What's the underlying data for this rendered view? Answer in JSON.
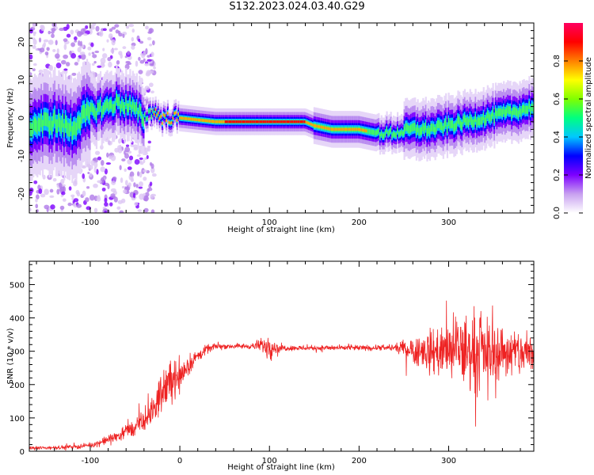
{
  "title": "S132.2023.024.03.40.G29",
  "chart_data": [
    {
      "type": "heatmap",
      "xlabel": "Height of straight line (km)",
      "ylabel": "Frequency (Hz)",
      "xlim": [
        -168,
        395
      ],
      "ylim": [
        -25,
        25
      ],
      "xticks": [
        -100,
        0,
        100,
        200,
        300
      ],
      "yticks": [
        -20,
        -10,
        0,
        10,
        20
      ],
      "grid": false,
      "colorbar": {
        "label": "Normalized spectral amplitude",
        "range": [
          0,
          1
        ],
        "ticks": [
          "0.0",
          "0.2",
          "0.4",
          "0.6",
          "0.8"
        ],
        "colors": [
          "#ffffff",
          "#c8a0f0",
          "#7d00ff",
          "#0000ff",
          "#00c8ff",
          "#00ff80",
          "#80ff00",
          "#ffff00",
          "#ff8000",
          "#ff0000",
          "#ff0060"
        ]
      },
      "ridge": {
        "x": [
          -165,
          -140,
          -120,
          -110,
          -95,
          -80,
          -70,
          -55,
          -40,
          -30,
          -20,
          0,
          40,
          60,
          100,
          140,
          150,
          170,
          200,
          220,
          240,
          260,
          280,
          300,
          320,
          340,
          360,
          380,
          395
        ],
        "y": [
          -2,
          -1,
          -3,
          0,
          2,
          3,
          4,
          3,
          0,
          2,
          0,
          0,
          -1,
          -1,
          -1,
          -1,
          -2,
          -3,
          -3,
          -4,
          -4,
          -3,
          -3,
          -2,
          -1,
          0,
          1,
          2,
          3
        ]
      }
    },
    {
      "type": "line",
      "xlabel": "Height of straight line (km)",
      "ylabel": "SNR (10 * v/v)",
      "xlim": [
        -168,
        395
      ],
      "ylim": [
        0,
        570
      ],
      "xticks": [
        -100,
        0,
        100,
        200,
        300
      ],
      "yticks": [
        0,
        100,
        200,
        300,
        400,
        500
      ],
      "grid": false,
      "series": [
        {
          "color": "#ee2222",
          "x": [
            -168,
            -150,
            -130,
            -110,
            -100,
            -90,
            -80,
            -70,
            -60,
            -50,
            -40,
            -30,
            -20,
            -10,
            0,
            10,
            20,
            30,
            40,
            60,
            80,
            95,
            100,
            105,
            120,
            150,
            180,
            210,
            240,
            250,
            260,
            270,
            280,
            290,
            300,
            310,
            320,
            330,
            340,
            350,
            360,
            370,
            380,
            395
          ],
          "y": [
            10,
            10,
            12,
            15,
            18,
            25,
            35,
            45,
            60,
            70,
            90,
            120,
            180,
            210,
            230,
            260,
            285,
            305,
            315,
            315,
            315,
            318,
            320,
            310,
            310,
            310,
            310,
            310,
            310,
            310,
            305,
            300,
            300,
            300,
            300,
            300,
            300,
            300,
            300,
            300,
            300,
            295,
            295,
            290
          ],
          "spread": [
            8,
            8,
            8,
            10,
            10,
            15,
            20,
            25,
            35,
            40,
            50,
            60,
            90,
            100,
            80,
            50,
            30,
            20,
            12,
            12,
            12,
            40,
            80,
            25,
            12,
            12,
            12,
            12,
            15,
            35,
            60,
            80,
            100,
            110,
            130,
            160,
            170,
            180,
            150,
            130,
            120,
            110,
            110,
            100
          ]
        }
      ]
    }
  ]
}
